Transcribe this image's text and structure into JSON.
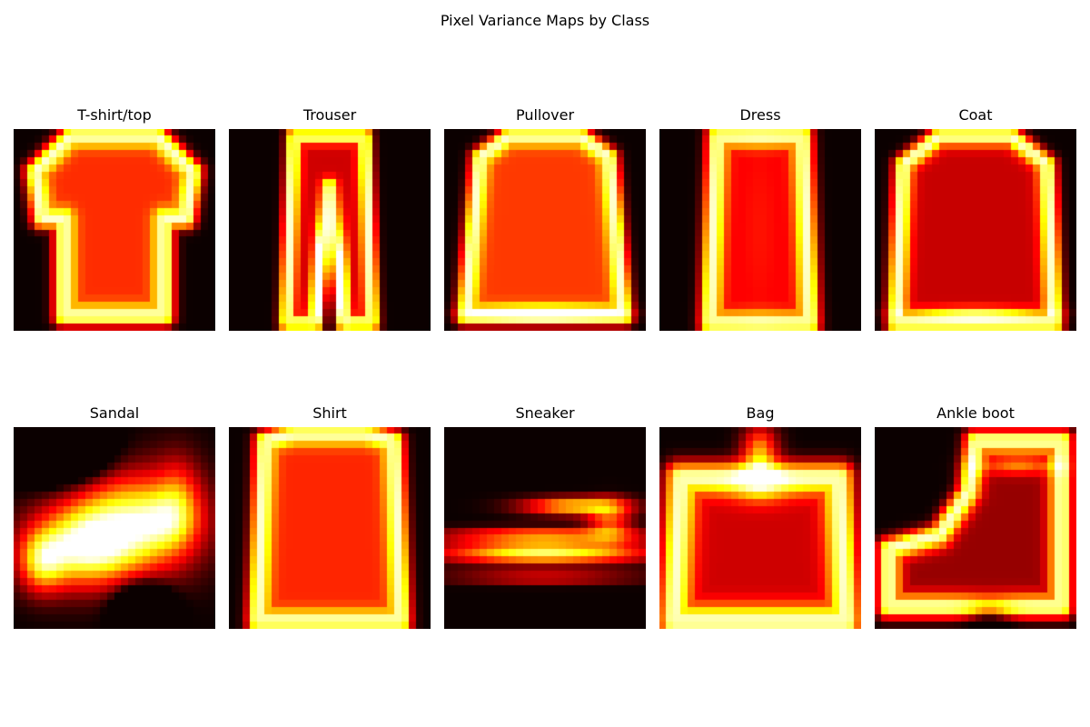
{
  "figure": {
    "title": "Pixel Variance Maps by Class"
  },
  "chart_data": {
    "type": "heatmap",
    "title": "Pixel Variance Maps by Class",
    "colormap": "hot",
    "grid": false,
    "layout": {
      "rows": 2,
      "cols": 5
    },
    "image_size": [
      28,
      28
    ],
    "colors": {
      "low": "#080000",
      "mid_low": "#cc0000",
      "mid": "#ff6600",
      "mid_high": "#ffff00",
      "high": "#ffffff"
    },
    "panels": [
      {
        "title": "T-shirt/top",
        "shape": "tshirt"
      },
      {
        "title": "Trouser",
        "shape": "trouser"
      },
      {
        "title": "Pullover",
        "shape": "pullover"
      },
      {
        "title": "Dress",
        "shape": "dress"
      },
      {
        "title": "Coat",
        "shape": "coat"
      },
      {
        "title": "Sandal",
        "shape": "sandal"
      },
      {
        "title": "Shirt",
        "shape": "shirt"
      },
      {
        "title": "Sneaker",
        "shape": "sneaker"
      },
      {
        "title": "Bag",
        "shape": "bag"
      },
      {
        "title": "Ankle boot",
        "shape": "boot"
      }
    ]
  }
}
